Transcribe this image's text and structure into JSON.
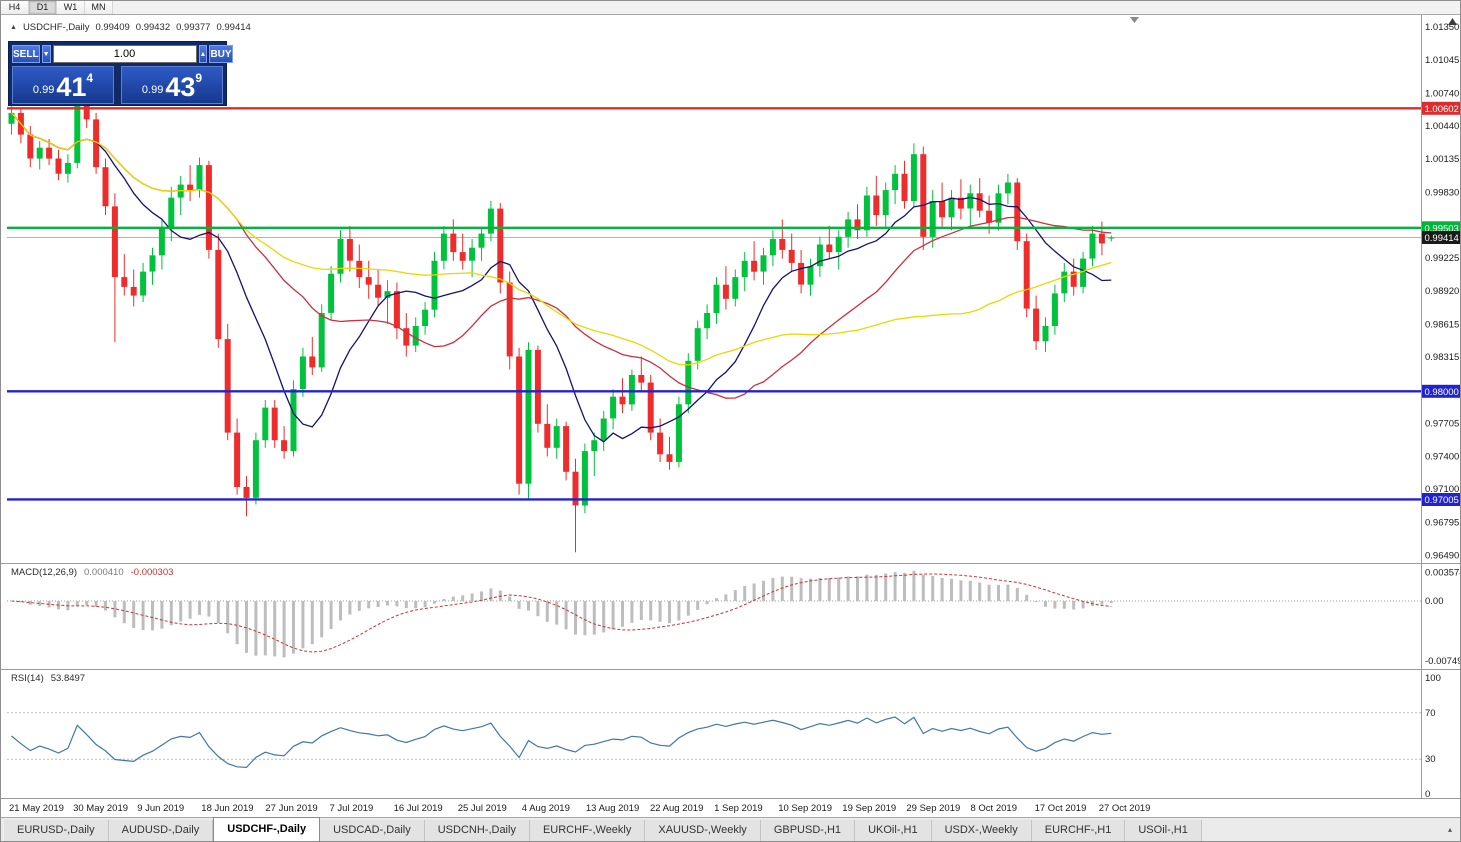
{
  "toolbar": {
    "buttons": [
      {
        "label": "H4",
        "active": false
      },
      {
        "label": "D1",
        "active": true
      },
      {
        "label": "W1",
        "active": false
      },
      {
        "label": "MN",
        "active": false
      }
    ]
  },
  "chart_header": {
    "symbol_title": "USDCHF-,Daily",
    "open": "0.99409",
    "high": "0.99432",
    "low": "0.99377",
    "close": "0.99414"
  },
  "trade_widget": {
    "sell_label": "SELL",
    "buy_label": "BUY",
    "volume": "1.00",
    "sell_price": {
      "prefix": "0.99",
      "big": "41",
      "sup": "4"
    },
    "buy_price": {
      "prefix": "0.99",
      "big": "43",
      "sup": "9"
    }
  },
  "levels": [
    {
      "label": "1.00602",
      "color": "#dd2c2c"
    },
    {
      "label": "0.99503",
      "color": "#00b43c"
    },
    {
      "label": "0.98000",
      "color": "#2323cc"
    },
    {
      "label": "0.97005",
      "color": "#2323cc"
    }
  ],
  "current_price": {
    "label": "0.99414",
    "badge_color": "#1a1a1a"
  },
  "price_scale": {
    "ticks": [
      "1.01350",
      "1.01045",
      "1.00740",
      "1.00440",
      "1.00135",
      "0.99830",
      "0.99530",
      "0.99225",
      "0.98920",
      "0.98615",
      "0.98315",
      "0.98010",
      "0.97705",
      "0.97400",
      "0.97100",
      "0.96795",
      "0.96490"
    ]
  },
  "macd_panel": {
    "label": "MACD(12,26,9)",
    "main_value": "0.000410",
    "signal_value": "-0.000303",
    "scale": [
      "0.003574",
      "0.00",
      "-0.00749"
    ]
  },
  "rsi_panel": {
    "label": "RSI(14)",
    "value": "53.8497",
    "scale": [
      "100",
      "70",
      "30",
      "0"
    ]
  },
  "time_axis": {
    "labels": [
      "21 May 2019",
      "30 May 2019",
      "9 Jun 2019",
      "18 Jun 2019",
      "27 Jun 2019",
      "7 Jul 2019",
      "16 Jul 2019",
      "25 Jul 2019",
      "4 Aug 2019",
      "13 Aug 2019",
      "22 Aug 2019",
      "1 Sep 2019",
      "10 Sep 2019",
      "19 Sep 2019",
      "29 Sep 2019",
      "8 Oct 2019",
      "17 Oct 2019",
      "27 Oct 2019"
    ]
  },
  "tabs": {
    "items": [
      "EURUSD-,Daily",
      "AUDUSD-,Daily",
      "USDCHF-,Daily",
      "USDCAD-,Daily",
      "USDCNH-,Daily",
      "EURCHF-,Weekly",
      "XAUUSD-,Weekly",
      "GBPUSD-,H1",
      "UKOil-,H1",
      "USDX-,Weekly",
      "EURCHF-,H1",
      "USOil-,H1"
    ],
    "active_index": 2
  },
  "chart_data": {
    "type": "candlestick",
    "title": "USDCHF-,Daily",
    "symbol": "USDCHF",
    "timeframe": "Daily",
    "ylim": [
      0.9643,
      1.0146
    ],
    "colors": {
      "up": "#00c23c",
      "down": "#ef2c2c"
    },
    "moving_averages": [
      {
        "period": 10,
        "type": "sma",
        "color": "#121270"
      },
      {
        "period": 25,
        "type": "sma",
        "color": "#cc2f3f"
      },
      {
        "period": 50,
        "type": "sma",
        "color": "#e8d800"
      }
    ],
    "indicators": [
      {
        "name": "MACD",
        "params": [
          12,
          26,
          9
        ]
      },
      {
        "name": "RSI",
        "params": [
          14
        ]
      }
    ],
    "dates": [
      "2019-05-21",
      "2019-05-22",
      "2019-05-23",
      "2019-05-24",
      "2019-05-27",
      "2019-05-28",
      "2019-05-29",
      "2019-05-30",
      "2019-05-31",
      "2019-06-03",
      "2019-06-04",
      "2019-06-05",
      "2019-06-06",
      "2019-06-07",
      "2019-06-10",
      "2019-06-11",
      "2019-06-12",
      "2019-06-13",
      "2019-06-14",
      "2019-06-17",
      "2019-06-18",
      "2019-06-19",
      "2019-06-20",
      "2019-06-21",
      "2019-06-24",
      "2019-06-25",
      "2019-06-26",
      "2019-06-27",
      "2019-06-28",
      "2019-07-01",
      "2019-07-02",
      "2019-07-03",
      "2019-07-04",
      "2019-07-05",
      "2019-07-08",
      "2019-07-09",
      "2019-07-10",
      "2019-07-11",
      "2019-07-12",
      "2019-07-15",
      "2019-07-16",
      "2019-07-17",
      "2019-07-18",
      "2019-07-19",
      "2019-07-22",
      "2019-07-23",
      "2019-07-24",
      "2019-07-25",
      "2019-07-26",
      "2019-07-29",
      "2019-07-30",
      "2019-07-31",
      "2019-08-01",
      "2019-08-02",
      "2019-08-05",
      "2019-08-06",
      "2019-08-07",
      "2019-08-08",
      "2019-08-09",
      "2019-08-12",
      "2019-08-13",
      "2019-08-14",
      "2019-08-15",
      "2019-08-16",
      "2019-08-19",
      "2019-08-20",
      "2019-08-21",
      "2019-08-22",
      "2019-08-23",
      "2019-08-26",
      "2019-08-27",
      "2019-08-28",
      "2019-08-29",
      "2019-08-30",
      "2019-09-02",
      "2019-09-03",
      "2019-09-04",
      "2019-09-05",
      "2019-09-06",
      "2019-09-09",
      "2019-09-10",
      "2019-09-11",
      "2019-09-12",
      "2019-09-13",
      "2019-09-16",
      "2019-09-17",
      "2019-09-18",
      "2019-09-19",
      "2019-09-20",
      "2019-09-23",
      "2019-09-24",
      "2019-09-25",
      "2019-09-26",
      "2019-09-27",
      "2019-09-30",
      "2019-10-01",
      "2019-10-02",
      "2019-10-03",
      "2019-10-04",
      "2019-10-07",
      "2019-10-08",
      "2019-10-09",
      "2019-10-10",
      "2019-10-11",
      "2019-10-14",
      "2019-10-15",
      "2019-10-16",
      "2019-10-17",
      "2019-10-18",
      "2019-10-21",
      "2019-10-22",
      "2019-10-23",
      "2019-10-24",
      "2019-10-25",
      "2019-10-28",
      "2019-10-29",
      "2019-10-30",
      "2019-10-31"
    ],
    "ohlc": [
      [
        1.0046,
        1.0062,
        1.0036,
        1.0056
      ],
      [
        1.0056,
        1.0061,
        1.0028,
        1.0036
      ],
      [
        1.0036,
        1.0044,
        1.0006,
        1.0014
      ],
      [
        1.0014,
        1.003,
        1.0004,
        1.0024
      ],
      [
        1.0024,
        1.0032,
        1.0008,
        1.0014
      ],
      [
        1.0014,
        1.0022,
        0.9994,
        1.0
      ],
      [
        1.0,
        1.0018,
        0.9992,
        1.001
      ],
      [
        1.001,
        1.0092,
        1.0005,
        1.0082
      ],
      [
        1.0082,
        1.0088,
        1.0042,
        1.005
      ],
      [
        1.005,
        1.0056,
        1.0,
        1.0006
      ],
      [
        1.0006,
        1.0014,
        0.9962,
        0.997
      ],
      [
        0.997,
        0.9982,
        0.9845,
        0.9905
      ],
      [
        0.9905,
        0.9926,
        0.9888,
        0.9896
      ],
      [
        0.9896,
        0.9912,
        0.9878,
        0.9888
      ],
      [
        0.9888,
        0.9918,
        0.9882,
        0.991
      ],
      [
        0.991,
        0.9932,
        0.9898,
        0.9925
      ],
      [
        0.9925,
        0.9958,
        0.9912,
        0.995
      ],
      [
        0.995,
        0.9988,
        0.9938,
        0.9978
      ],
      [
        0.9978,
        0.9998,
        0.9962,
        0.999
      ],
      [
        0.999,
        1.0008,
        0.9975,
        0.9985
      ],
      [
        0.9985,
        1.0015,
        0.9978,
        1.0008
      ],
      [
        1.0008,
        1.0012,
        0.9922,
        0.993
      ],
      [
        0.993,
        0.9945,
        0.984,
        0.9848
      ],
      [
        0.9848,
        0.9862,
        0.9755,
        0.9762
      ],
      [
        0.9762,
        0.9775,
        0.9705,
        0.9712
      ],
      [
        0.9712,
        0.9722,
        0.9685,
        0.9702
      ],
      [
        0.9702,
        0.9762,
        0.9696,
        0.9755
      ],
      [
        0.9755,
        0.9792,
        0.9748,
        0.9785
      ],
      [
        0.9785,
        0.9792,
        0.9748,
        0.9755
      ],
      [
        0.9755,
        0.9768,
        0.9738,
        0.9745
      ],
      [
        0.9745,
        0.981,
        0.974,
        0.9802
      ],
      [
        0.9802,
        0.984,
        0.9795,
        0.9832
      ],
      [
        0.9832,
        0.985,
        0.9815,
        0.9822
      ],
      [
        0.9822,
        0.988,
        0.9818,
        0.9872
      ],
      [
        0.9872,
        0.9915,
        0.9865,
        0.9908
      ],
      [
        0.9908,
        0.9948,
        0.99,
        0.994
      ],
      [
        0.994,
        0.9952,
        0.991,
        0.992
      ],
      [
        0.992,
        0.9935,
        0.9895,
        0.9905
      ],
      [
        0.9905,
        0.992,
        0.9885,
        0.9898
      ],
      [
        0.9898,
        0.9912,
        0.9878,
        0.9886
      ],
      [
        0.9886,
        0.9902,
        0.9862,
        0.9892
      ],
      [
        0.9892,
        0.99,
        0.9848,
        0.9858
      ],
      [
        0.9858,
        0.9872,
        0.9832,
        0.9842
      ],
      [
        0.9842,
        0.9868,
        0.9836,
        0.986
      ],
      [
        0.986,
        0.9882,
        0.9852,
        0.9875
      ],
      [
        0.9875,
        0.9928,
        0.9868,
        0.992
      ],
      [
        0.992,
        0.9952,
        0.9912,
        0.9945
      ],
      [
        0.9945,
        0.9958,
        0.992,
        0.9928
      ],
      [
        0.9928,
        0.9945,
        0.9912,
        0.992
      ],
      [
        0.992,
        0.994,
        0.9905,
        0.9932
      ],
      [
        0.9932,
        0.995,
        0.992,
        0.9945
      ],
      [
        0.9945,
        0.9975,
        0.9938,
        0.9968
      ],
      [
        0.9968,
        0.9973,
        0.989,
        0.99
      ],
      [
        0.99,
        0.991,
        0.982,
        0.9832
      ],
      [
        0.9832,
        0.984,
        0.9705,
        0.9715
      ],
      [
        0.9715,
        0.9845,
        0.97,
        0.9838
      ],
      [
        0.9838,
        0.9842,
        0.9762,
        0.977
      ],
      [
        0.977,
        0.9788,
        0.974,
        0.9748
      ],
      [
        0.9748,
        0.9775,
        0.9738,
        0.9768
      ],
      [
        0.9768,
        0.9772,
        0.9718,
        0.9726
      ],
      [
        0.9726,
        0.9738,
        0.9652,
        0.9695
      ],
      [
        0.9695,
        0.9752,
        0.9688,
        0.9745
      ],
      [
        0.9745,
        0.9762,
        0.9722,
        0.9755
      ],
      [
        0.9755,
        0.9782,
        0.9745,
        0.9775
      ],
      [
        0.9775,
        0.9802,
        0.9765,
        0.9795
      ],
      [
        0.9795,
        0.9812,
        0.978,
        0.9788
      ],
      [
        0.9788,
        0.982,
        0.9782,
        0.9815
      ],
      [
        0.9815,
        0.9832,
        0.98,
        0.9808
      ],
      [
        0.9808,
        0.9815,
        0.9755,
        0.9762
      ],
      [
        0.9762,
        0.9775,
        0.9735,
        0.9742
      ],
      [
        0.9742,
        0.9758,
        0.9728,
        0.9735
      ],
      [
        0.9735,
        0.9795,
        0.973,
        0.9788
      ],
      [
        0.9788,
        0.9835,
        0.978,
        0.9828
      ],
      [
        0.9828,
        0.9865,
        0.982,
        0.9858
      ],
      [
        0.9858,
        0.988,
        0.9848,
        0.9872
      ],
      [
        0.9872,
        0.9905,
        0.9862,
        0.9898
      ],
      [
        0.9898,
        0.9915,
        0.9875,
        0.9885
      ],
      [
        0.9885,
        0.9912,
        0.9878,
        0.9905
      ],
      [
        0.9905,
        0.9928,
        0.9892,
        0.992
      ],
      [
        0.992,
        0.9938,
        0.9902,
        0.991
      ],
      [
        0.991,
        0.9932,
        0.9898,
        0.9925
      ],
      [
        0.9925,
        0.9948,
        0.9915,
        0.994
      ],
      [
        0.994,
        0.9958,
        0.9922,
        0.993
      ],
      [
        0.993,
        0.9945,
        0.991,
        0.9918
      ],
      [
        0.9918,
        0.993,
        0.989,
        0.9898
      ],
      [
        0.9898,
        0.9922,
        0.9888,
        0.9915
      ],
      [
        0.9915,
        0.9942,
        0.9905,
        0.9935
      ],
      [
        0.9935,
        0.9952,
        0.9922,
        0.9928
      ],
      [
        0.9928,
        0.9948,
        0.9912,
        0.9942
      ],
      [
        0.9942,
        0.9965,
        0.9932,
        0.9958
      ],
      [
        0.9958,
        0.9972,
        0.994,
        0.9948
      ],
      [
        0.9948,
        0.9988,
        0.9942,
        0.998
      ],
      [
        0.998,
        0.9998,
        0.9952,
        0.9962
      ],
      [
        0.9962,
        0.9992,
        0.995,
        0.9985
      ],
      [
        0.9985,
        1.0008,
        0.9972,
        1.0
      ],
      [
        1.0,
        1.0012,
        0.9968,
        0.9975
      ],
      [
        0.9975,
        1.0028,
        0.997,
        1.0018
      ],
      [
        1.0018,
        1.0025,
        0.993,
        0.9942
      ],
      [
        0.9942,
        0.9985,
        0.9932,
        0.9975
      ],
      [
        0.9975,
        0.9992,
        0.995,
        0.996
      ],
      [
        0.996,
        0.9985,
        0.9948,
        0.9978
      ],
      [
        0.9978,
        0.9995,
        0.9958,
        0.9968
      ],
      [
        0.9968,
        0.999,
        0.9952,
        0.9982
      ],
      [
        0.9982,
        0.9996,
        0.996,
        0.9966
      ],
      [
        0.9966,
        0.998,
        0.9945,
        0.9955
      ],
      [
        0.9955,
        0.999,
        0.9948,
        0.9982
      ],
      [
        0.9982,
        1.0,
        0.9972,
        0.9992
      ],
      [
        0.9992,
        0.9996,
        0.993,
        0.9938
      ],
      [
        0.9938,
        0.9945,
        0.9868,
        0.9876
      ],
      [
        0.9876,
        0.9888,
        0.9838,
        0.9846
      ],
      [
        0.9846,
        0.9868,
        0.9836,
        0.986
      ],
      [
        0.986,
        0.9898,
        0.9852,
        0.989
      ],
      [
        0.989,
        0.9918,
        0.9882,
        0.991
      ],
      [
        0.991,
        0.9922,
        0.9888,
        0.9896
      ],
      [
        0.9896,
        0.9928,
        0.989,
        0.9922
      ],
      [
        0.9922,
        0.9952,
        0.9915,
        0.9945
      ],
      [
        0.9945,
        0.9956,
        0.9925,
        0.9936
      ],
      [
        0.99409,
        0.99432,
        0.99377,
        0.99414
      ]
    ]
  }
}
